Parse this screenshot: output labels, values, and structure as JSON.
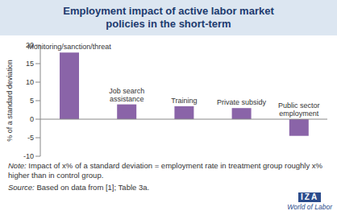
{
  "chart_data": {
    "type": "bar",
    "title": "Employment impact of active labor market policies in the short-term",
    "y_label": "% of a standard deviation",
    "categories": [
      "Monitoring/sanction/threat",
      "Job search assistance",
      "Training",
      "Private subsidy",
      "Public sector employment"
    ],
    "values": [
      18,
      4,
      3.5,
      3,
      -4.5
    ],
    "color": "#8a64a8",
    "ylim": [
      -10,
      20
    ],
    "yticks": [
      -10,
      -5,
      0,
      5,
      10,
      15,
      20
    ],
    "grid": false,
    "notes": [
      {
        "label": "Note:",
        "text": "Impact of x% of a standard deviation = employment rate in treatment group roughly x% higher than in control group."
      },
      {
        "label": "Source:",
        "text": "Based on data from [1]; Table 3a."
      }
    ],
    "logo": [
      "IZA",
      "World of Labor"
    ]
  }
}
